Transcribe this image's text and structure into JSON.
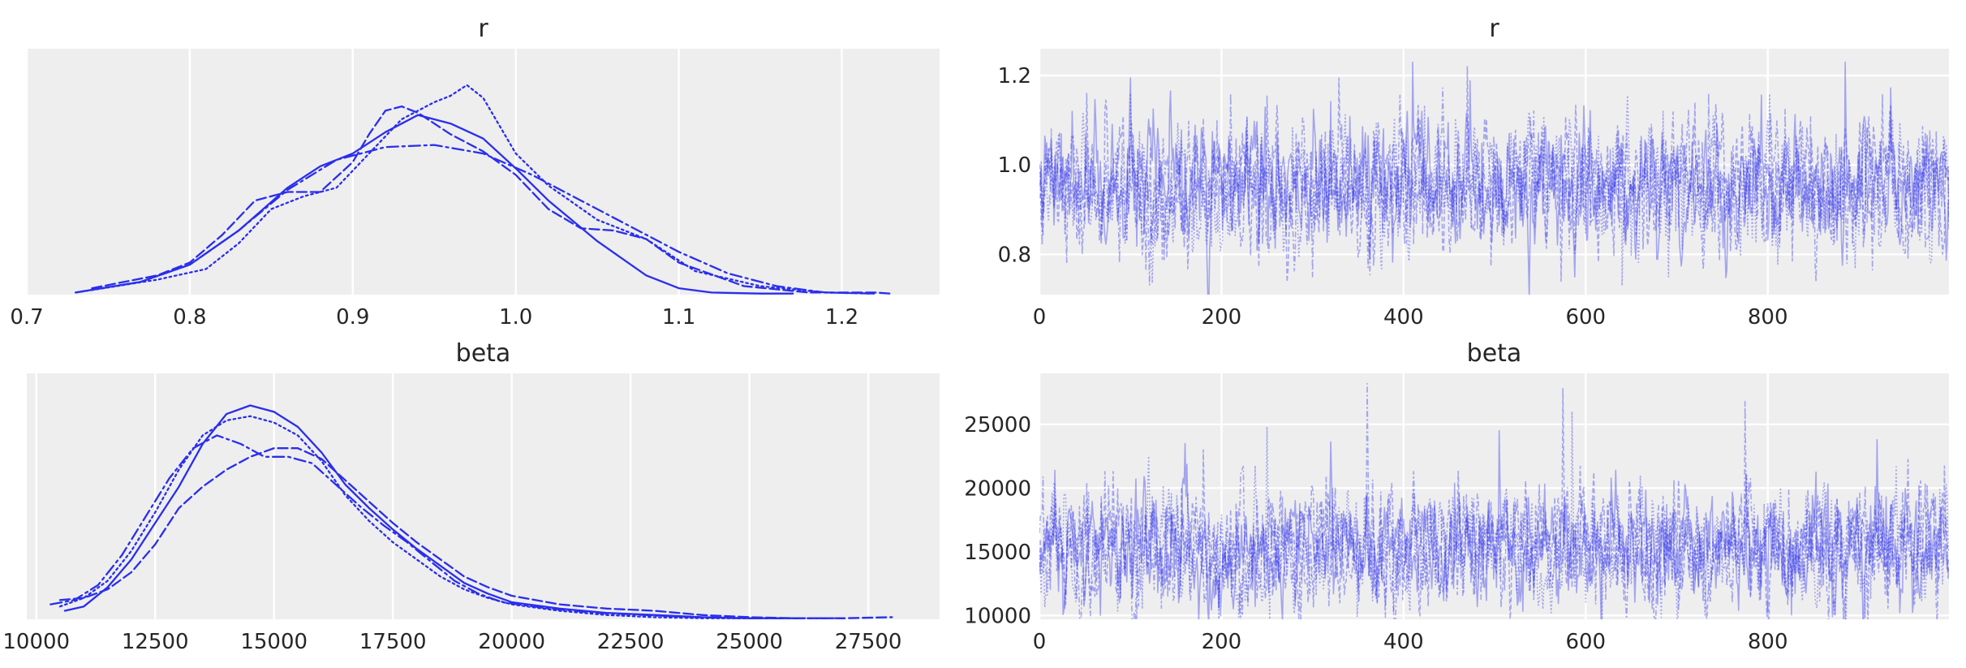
{
  "colors": {
    "line": "#2a2eec",
    "panel_bg": "#eeeeee",
    "grid": "#ffffff"
  },
  "chart_data": [
    {
      "type": "line",
      "subtype": "kde",
      "title": "r",
      "xlim": [
        0.7,
        1.26
      ],
      "xticks": [
        0.7,
        0.8,
        0.9,
        1.0,
        1.1,
        1.2
      ],
      "xtick_labels": [
        "0.7",
        "0.8",
        "0.9",
        "1.0",
        "1.1",
        "1.2"
      ],
      "ylim": [
        0,
        1.15
      ],
      "grid": true,
      "legend": "none",
      "series": [
        {
          "linestyle": "solid",
          "x": [
            0.73,
            0.77,
            0.8,
            0.83,
            0.86,
            0.88,
            0.9,
            0.92,
            0.94,
            0.96,
            0.98,
            1.0,
            1.02,
            1.05,
            1.08,
            1.1,
            1.12,
            1.15,
            1.17
          ],
          "y": [
            0.01,
            0.06,
            0.14,
            0.3,
            0.5,
            0.6,
            0.66,
            0.76,
            0.84,
            0.8,
            0.73,
            0.59,
            0.44,
            0.25,
            0.09,
            0.03,
            0.01,
            0.005,
            0.005
          ]
        },
        {
          "linestyle": "dashed",
          "x": [
            0.74,
            0.78,
            0.8,
            0.82,
            0.84,
            0.86,
            0.88,
            0.9,
            0.91,
            0.92,
            0.93,
            0.94,
            0.96,
            0.98,
            1.0,
            1.02,
            1.04,
            1.06,
            1.08,
            1.1,
            1.14,
            1.18,
            1.22,
            1.23
          ],
          "y": [
            0.03,
            0.09,
            0.15,
            0.28,
            0.44,
            0.48,
            0.48,
            0.62,
            0.75,
            0.86,
            0.88,
            0.85,
            0.75,
            0.67,
            0.56,
            0.4,
            0.31,
            0.3,
            0.26,
            0.15,
            0.04,
            0.01,
            0.01,
            0.005
          ]
        },
        {
          "linestyle": "dotted",
          "x": [
            0.73,
            0.78,
            0.81,
            0.83,
            0.85,
            0.87,
            0.89,
            0.91,
            0.93,
            0.95,
            0.96,
            0.97,
            0.98,
            1.0,
            1.02,
            1.05,
            1.08,
            1.11,
            1.15,
            1.19,
            1.22
          ],
          "y": [
            0.01,
            0.07,
            0.12,
            0.24,
            0.4,
            0.46,
            0.5,
            0.66,
            0.82,
            0.9,
            0.93,
            0.98,
            0.92,
            0.66,
            0.51,
            0.35,
            0.26,
            0.11,
            0.04,
            0.01,
            0.005
          ]
        },
        {
          "linestyle": "dashdot",
          "x": [
            0.73,
            0.77,
            0.8,
            0.83,
            0.86,
            0.89,
            0.92,
            0.95,
            0.98,
            1.01,
            1.04,
            1.07,
            1.1,
            1.13,
            1.16,
            1.19,
            1.22
          ],
          "y": [
            0.01,
            0.06,
            0.14,
            0.3,
            0.49,
            0.63,
            0.69,
            0.7,
            0.66,
            0.56,
            0.44,
            0.32,
            0.2,
            0.1,
            0.04,
            0.01,
            0.005
          ]
        }
      ]
    },
    {
      "type": "line",
      "subtype": "trace",
      "title": "r",
      "xlim": [
        0,
        999
      ],
      "ylim": [
        0.71,
        1.26
      ],
      "xticks": [
        0,
        200,
        400,
        600,
        800
      ],
      "xtick_labels": [
        "0",
        "200",
        "400",
        "600",
        "800"
      ],
      "yticks": [
        0.8,
        1.0,
        1.2
      ],
      "ytick_labels": [
        "0.8",
        "1.0",
        "1.2"
      ],
      "grid": true,
      "legend": "none",
      "n_draws": 1000,
      "chains": 4,
      "center": 0.95,
      "spread": 0.07,
      "spikes": [
        [
          36,
          1.12
        ],
        [
          52,
          1.16
        ],
        [
          100,
          1.16
        ],
        [
          210,
          1.16
        ],
        [
          410,
          1.23
        ],
        [
          470,
          1.22
        ],
        [
          685,
          1.12
        ],
        [
          735,
          1.16
        ],
        [
          885,
          1.23
        ],
        [
          573,
          0.74
        ],
        [
          640,
          0.73
        ],
        [
          300,
          0.75
        ]
      ]
    },
    {
      "type": "line",
      "subtype": "kde",
      "title": "beta",
      "xlim": [
        9800,
        29000
      ],
      "xticks": [
        10000,
        12500,
        15000,
        17500,
        20000,
        22500,
        25000,
        27500
      ],
      "xtick_labels": [
        "10000",
        "12500",
        "15000",
        "17500",
        "20000",
        "22500",
        "25000",
        "27500"
      ],
      "ylim": [
        0,
        1.15
      ],
      "grid": true,
      "legend": "none",
      "series": [
        {
          "linestyle": "solid",
          "x": [
            10600,
            11000,
            11500,
            12000,
            12500,
            13000,
            13500,
            14000,
            14500,
            15000,
            15500,
            16000,
            16500,
            17000,
            17500,
            18000,
            18500,
            19000,
            19500,
            20000,
            21000,
            22000,
            23000,
            24000,
            25000,
            26000
          ],
          "y": [
            0.04,
            0.06,
            0.15,
            0.28,
            0.45,
            0.62,
            0.82,
            0.96,
            1.0,
            0.97,
            0.9,
            0.78,
            0.63,
            0.52,
            0.42,
            0.33,
            0.25,
            0.17,
            0.12,
            0.08,
            0.05,
            0.03,
            0.02,
            0.01,
            0.005,
            0.005
          ]
        },
        {
          "linestyle": "dashed",
          "x": [
            10500,
            11000,
            11500,
            12000,
            12500,
            13000,
            13500,
            14000,
            14500,
            15000,
            15500,
            16000,
            16500,
            17000,
            17500,
            18000,
            18500,
            19000,
            19500,
            20000,
            21000,
            22000,
            23000,
            24000,
            25000,
            26000,
            27000,
            28000
          ],
          "y": [
            0.09,
            0.1,
            0.14,
            0.22,
            0.35,
            0.52,
            0.62,
            0.7,
            0.76,
            0.8,
            0.8,
            0.75,
            0.65,
            0.55,
            0.45,
            0.36,
            0.28,
            0.2,
            0.15,
            0.11,
            0.07,
            0.05,
            0.04,
            0.02,
            0.01,
            0.005,
            0.005,
            0.01
          ]
        },
        {
          "linestyle": "dotted",
          "x": [
            10500,
            11000,
            11500,
            12000,
            12500,
            13000,
            13500,
            14000,
            14500,
            15000,
            15500,
            16000,
            16500,
            17000,
            17500,
            18000,
            18500,
            19000,
            19500,
            20000,
            21000,
            22000,
            23000,
            24000,
            25000
          ],
          "y": [
            0.06,
            0.1,
            0.18,
            0.32,
            0.5,
            0.7,
            0.86,
            0.93,
            0.95,
            0.92,
            0.86,
            0.74,
            0.58,
            0.46,
            0.36,
            0.28,
            0.2,
            0.14,
            0.1,
            0.07,
            0.04,
            0.02,
            0.01,
            0.005,
            0.005
          ]
        },
        {
          "linestyle": "dashdot",
          "x": [
            10300,
            10800,
            11300,
            11800,
            12300,
            12800,
            13300,
            13800,
            14300,
            14800,
            15300,
            15800,
            16300,
            16800,
            17300,
            17800,
            18300,
            18800,
            19300,
            19800,
            20800,
            21800,
            22800,
            23800,
            24800,
            25800,
            27000
          ],
          "y": [
            0.07,
            0.09,
            0.16,
            0.3,
            0.48,
            0.66,
            0.8,
            0.86,
            0.82,
            0.76,
            0.76,
            0.73,
            0.63,
            0.53,
            0.44,
            0.36,
            0.27,
            0.18,
            0.12,
            0.08,
            0.05,
            0.03,
            0.02,
            0.01,
            0.005,
            0.005,
            0.005
          ]
        }
      ]
    },
    {
      "type": "line",
      "subtype": "trace",
      "title": "beta",
      "xlim": [
        0,
        999
      ],
      "ylim": [
        9700,
        29000
      ],
      "xticks": [
        0,
        200,
        400,
        600,
        800
      ],
      "xtick_labels": [
        "0",
        "200",
        "400",
        "600",
        "800"
      ],
      "yticks": [
        10000,
        15000,
        20000,
        25000
      ],
      "ytick_labels": [
        "10000",
        "15000",
        "20000",
        "25000"
      ],
      "grid": true,
      "legend": "none",
      "n_draws": 1000,
      "chains": 4,
      "center": 15200,
      "spread": 2300,
      "spikes": [
        [
          160,
          23500
        ],
        [
          180,
          23000
        ],
        [
          250,
          24800
        ],
        [
          360,
          28200
        ],
        [
          505,
          24500
        ],
        [
          575,
          27800
        ],
        [
          585,
          26000
        ],
        [
          775,
          26800
        ],
        [
          920,
          23800
        ]
      ]
    }
  ]
}
